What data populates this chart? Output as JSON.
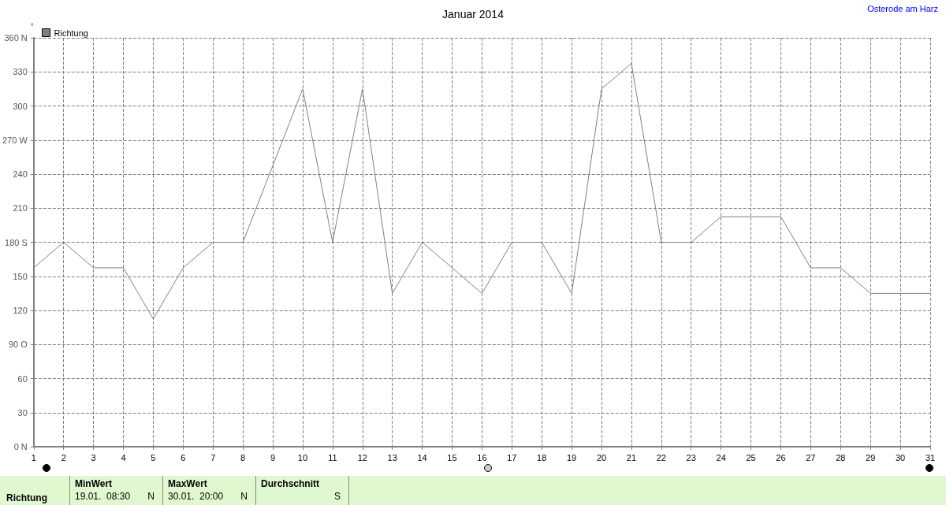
{
  "chart_data": {
    "type": "line",
    "title": "Januar 2014",
    "ylabel": "°",
    "x": [
      1,
      2,
      3,
      4,
      5,
      6,
      7,
      8,
      9,
      10,
      11,
      12,
      13,
      14,
      15,
      16,
      17,
      18,
      19,
      20,
      21,
      22,
      23,
      24,
      25,
      26,
      27,
      28,
      29,
      30,
      31
    ],
    "series": [
      {
        "name": "Richtung",
        "color": "#808080",
        "values": [
          157.5,
          180,
          157.5,
          157.5,
          112.5,
          157.5,
          180,
          180,
          247.5,
          315,
          180,
          315,
          135,
          180,
          157.5,
          135,
          180,
          180,
          135,
          315,
          337.5,
          180,
          180,
          202.5,
          202.5,
          202.5,
          157.5,
          157.5,
          135,
          135,
          135
        ]
      }
    ],
    "xlim": [
      1,
      31
    ],
    "xticks": [
      1,
      2,
      3,
      4,
      5,
      6,
      7,
      8,
      9,
      10,
      11,
      12,
      13,
      14,
      15,
      16,
      17,
      18,
      19,
      20,
      21,
      22,
      23,
      24,
      25,
      26,
      27,
      28,
      29,
      30,
      31
    ],
    "ylim": [
      0,
      360
    ],
    "yticks": [
      {
        "value": 0,
        "label": "0 N"
      },
      30,
      60,
      {
        "value": 90,
        "label": "90 O"
      },
      120,
      150,
      {
        "value": 180,
        "label": "180 S"
      },
      210,
      240,
      {
        "value": 270,
        "label": "270 W"
      },
      300,
      330,
      {
        "value": 360,
        "label": "360 N"
      }
    ],
    "grid": true,
    "legend": "top left",
    "marker": "none",
    "line_style": "solid",
    "annotations": [
      "Osterode am Harz",
      "Richtung",
      "MinWert",
      "19.01.  08:30",
      "N",
      "MaxWert",
      "30.01.  20:00",
      "N",
      "Durchschnitt",
      "S"
    ]
  }
}
